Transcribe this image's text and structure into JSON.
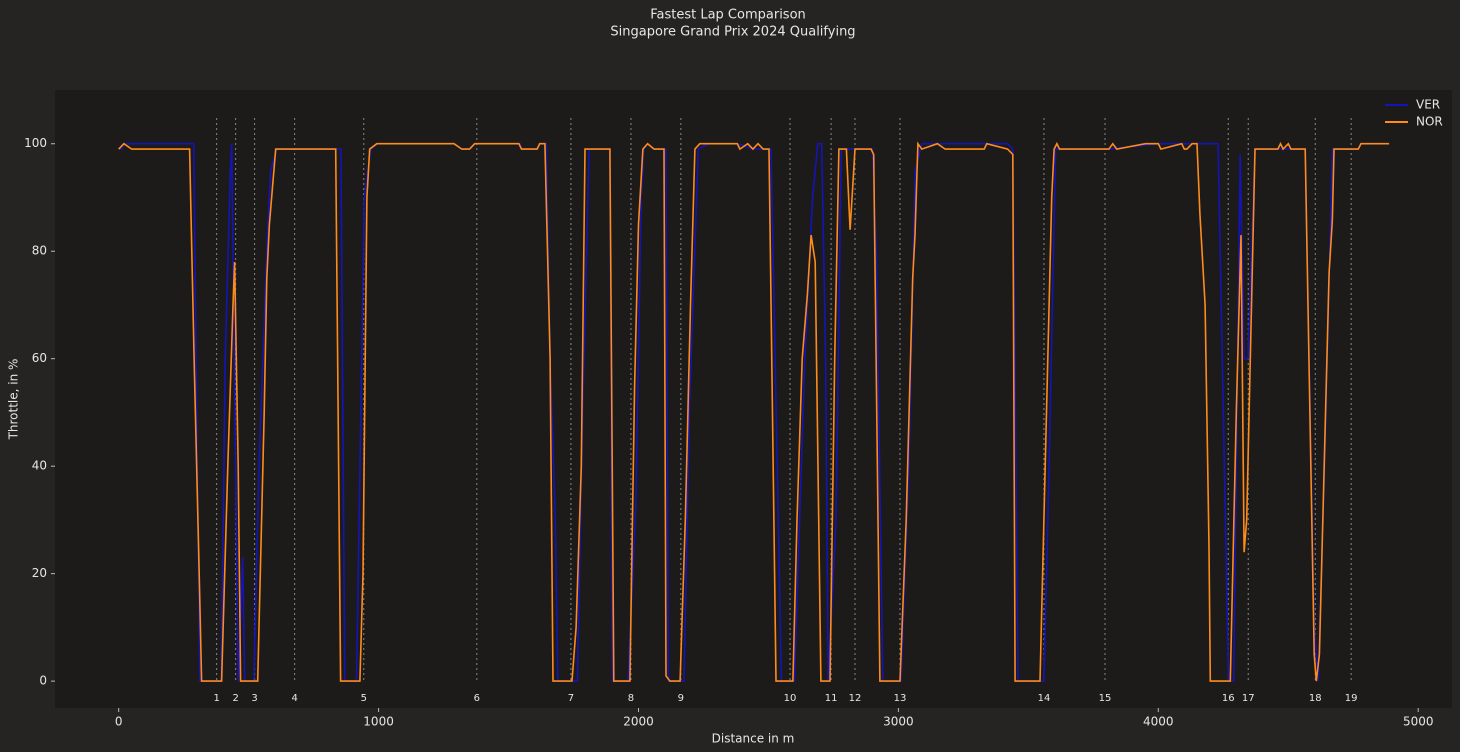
{
  "chart_data": {
    "type": "line",
    "title": "Fastest Lap Comparison",
    "subtitle": "Singapore Grand Prix 2024 Qualifying",
    "xlabel": "Distance in m",
    "ylabel": "Throttle, in %",
    "xlim": [
      -245,
      5130
    ],
    "ylim": [
      -5,
      110
    ],
    "xticks": [
      0,
      1000,
      2000,
      3000,
      4000,
      5000
    ],
    "yticks": [
      0,
      20,
      40,
      60,
      80,
      100
    ],
    "legend": "upper right",
    "corners": [
      {
        "label": "1",
        "x": 377
      },
      {
        "label": "2",
        "x": 450
      },
      {
        "label": "3",
        "x": 523
      },
      {
        "label": "4",
        "x": 677
      },
      {
        "label": "5",
        "x": 943
      },
      {
        "label": "6",
        "x": 1378
      },
      {
        "label": "7",
        "x": 1740
      },
      {
        "label": "8",
        "x": 1971
      },
      {
        "label": "9",
        "x": 2163
      },
      {
        "label": "10",
        "x": 2583
      },
      {
        "label": "11",
        "x": 2741
      },
      {
        "label": "12",
        "x": 2833
      },
      {
        "label": "13",
        "x": 3006
      },
      {
        "label": "14",
        "x": 3560
      },
      {
        "label": "15",
        "x": 3795
      },
      {
        "label": "16",
        "x": 4269
      },
      {
        "label": "17",
        "x": 4346
      },
      {
        "label": "18",
        "x": 4604
      },
      {
        "label": "19",
        "x": 4742
      }
    ],
    "series": [
      {
        "name": "VER",
        "color": "#1414b8",
        "x": [
          0,
          10,
          20,
          270,
          289,
          300,
          313,
          395,
          410,
          430,
          435,
          445,
          460,
          468,
          477,
          485,
          520,
          540,
          570,
          585,
          608,
          855,
          870,
          915,
          925,
          945,
          970,
          995,
          1290,
          1320,
          1350,
          1370,
          1545,
          1550,
          1610,
          1620,
          1645,
          1660,
          1680,
          1690,
          1765,
          1785,
          1810,
          1890,
          1900,
          1960,
          1990,
          2010,
          2020,
          2035,
          2060,
          2105,
          2115,
          2175,
          2195,
          2230,
          2270,
          2380,
          2440,
          2510,
          2530,
          2550,
          2600,
          2640,
          2670,
          2690,
          2705,
          2720,
          2730,
          2760,
          2780,
          2900,
          2915,
          2940,
          3010,
          3040,
          3065,
          3090,
          3420,
          3440,
          3460,
          3560,
          3580,
          3605,
          3625,
          3810,
          4000,
          4210,
          4230,
          4250,
          4270,
          4290,
          4305,
          4315,
          4330,
          4345,
          4372,
          4565,
          4600,
          4615,
          4640,
          4670,
          4769,
          4780,
          4888
        ],
        "values": [
          99,
          99,
          100,
          100,
          100,
          50,
          0,
          0,
          60,
          95,
          100,
          60,
          0,
          10,
          23,
          0,
          0,
          40,
          80,
          95,
          99,
          99,
          0,
          0,
          30,
          90,
          99,
          100,
          100,
          99,
          99,
          100,
          100,
          99,
          99,
          100,
          100,
          60,
          30,
          0,
          0,
          50,
          99,
          99,
          0,
          0,
          33,
          90,
          99,
          100,
          99,
          99,
          0,
          0,
          50,
          99,
          100,
          100,
          99,
          99,
          50,
          0,
          0,
          60,
          90,
          100,
          100,
          60,
          0,
          30,
          99,
          99,
          80,
          0,
          0,
          40,
          95,
          100,
          100,
          99,
          0,
          0,
          40,
          99,
          99,
          99,
          100,
          100,
          100,
          50,
          0,
          0,
          60,
          98,
          60,
          60,
          99,
          99,
          10,
          0,
          40,
          99,
          99,
          100,
          100
        ]
      },
      {
        "name": "NOR",
        "color": "#ff8c1a",
        "x": [
          0,
          20,
          50,
          273,
          290,
          310,
          319,
          396,
          420,
          440,
          446,
          460,
          469,
          535,
          560,
          570,
          580,
          604,
          835,
          854,
          928,
          940,
          955,
          966,
          993,
          1290,
          1320,
          1350,
          1370,
          1540,
          1550,
          1610,
          1620,
          1640,
          1660,
          1671,
          1744,
          1760,
          1780,
          1794,
          1890,
          1905,
          1967,
          1985,
          2000,
          2017,
          2035,
          2060,
          2098,
          2106,
          2121,
          2160,
          2180,
          2200,
          2217,
          2236,
          2380,
          2390,
          2420,
          2440,
          2460,
          2480,
          2502,
          2529,
          2594,
          2610,
          2630,
          2650,
          2664,
          2680,
          2702,
          2737,
          2755,
          2771,
          2800,
          2814,
          2833,
          2895,
          2905,
          2929,
          3006,
          3030,
          3055,
          3064,
          3075,
          3090,
          3150,
          3180,
          3330,
          3340,
          3420,
          3440,
          3449,
          3545,
          3560,
          3590,
          3599,
          3610,
          3620,
          3810,
          3825,
          3840,
          3950,
          4000,
          4010,
          4090,
          4100,
          4110,
          4130,
          4149,
          4160,
          4180,
          4195,
          4200,
          4277,
          4300,
          4318,
          4330,
          4340,
          4372,
          4460,
          4470,
          4480,
          4500,
          4510,
          4565,
          4600,
          4608,
          4620,
          4657,
          4670,
          4676,
          4769,
          4780,
          4888
        ],
        "values": [
          99,
          100,
          99,
          99,
          60,
          20,
          0,
          0,
          40,
          70,
          78,
          40,
          0,
          0,
          50,
          75,
          85,
          99,
          99,
          0,
          0,
          20,
          90,
          99,
          100,
          100,
          99,
          99,
          100,
          100,
          99,
          99,
          100,
          100,
          60,
          0,
          0,
          10,
          40,
          99,
          99,
          0,
          0,
          55,
          85,
          99,
          100,
          99,
          99,
          1,
          0,
          0,
          30,
          70,
          99,
          100,
          100,
          99,
          100,
          99,
          100,
          99,
          99,
          0,
          0,
          30,
          60,
          72,
          83,
          78,
          0,
          0,
          60,
          99,
          99,
          84,
          99,
          99,
          98,
          0,
          0,
          30,
          75,
          83,
          100,
          99,
          100,
          99,
          99,
          100,
          99,
          98,
          0,
          0,
          30,
          90,
          99,
          100,
          99,
          99,
          100,
          99,
          100,
          100,
          99,
          100,
          99,
          99,
          100,
          100,
          87,
          70,
          25,
          0,
          0,
          50,
          83,
          24,
          30,
          99,
          99,
          100,
          99,
          100,
          99,
          99,
          5,
          0,
          5,
          76,
          86,
          99,
          99,
          100,
          100
        ]
      }
    ]
  }
}
